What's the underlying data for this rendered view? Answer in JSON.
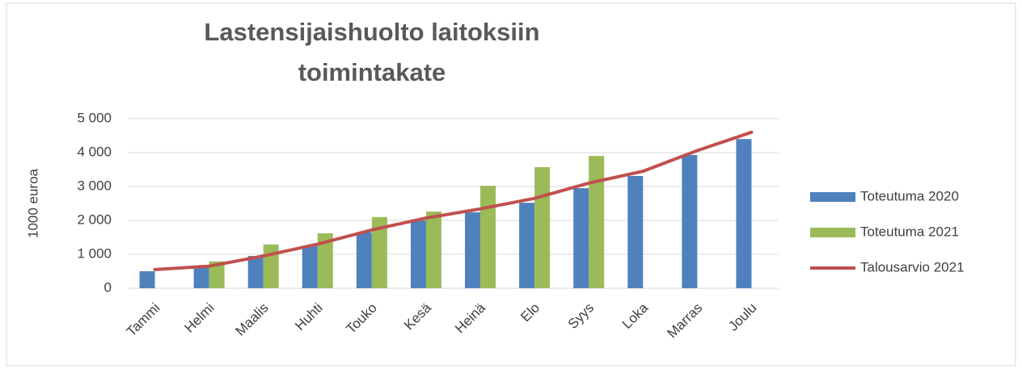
{
  "chart_data": {
    "type": "bar_line",
    "title": [
      "Lastensijaishuolto laitoksiin",
      "toimintakate"
    ],
    "ylabel": "1000 euroa",
    "categories": [
      "Tammi",
      "Helmi",
      "Maalis",
      "Huhti",
      "Touko",
      "Kesä",
      "Heinä",
      "Elo",
      "Syys",
      "Loka",
      "Marras",
      "Joulu"
    ],
    "series": [
      {
        "name": "Toteutuma 2020",
        "color": "#4f81bd",
        "kind": "bar",
        "values": [
          500,
          600,
          950,
          1250,
          1650,
          2000,
          2240,
          2520,
          2950,
          3310,
          3930,
          4400
        ]
      },
      {
        "name": "Toteutuma 2021",
        "color": "#9bbb59",
        "kind": "bar",
        "values": [
          null,
          790,
          1290,
          1620,
          2100,
          2260,
          3020,
          3570,
          3900,
          null,
          null,
          null
        ]
      },
      {
        "name": "Talousarvio 2021",
        "color": "#c0504d",
        "kind": "line",
        "values": [
          550,
          650,
          950,
          1300,
          1720,
          2070,
          2340,
          2650,
          3100,
          3450,
          4060,
          4600
        ]
      }
    ],
    "ylim": [
      0,
      5000
    ],
    "yticks": [
      {
        "value": 0,
        "label": "0"
      },
      {
        "value": 1000,
        "label": "1 000"
      },
      {
        "value": 2000,
        "label": "2 000"
      },
      {
        "value": 3000,
        "label": "3 000"
      },
      {
        "value": 4000,
        "label": "4 000"
      },
      {
        "value": 5000,
        "label": "5 000"
      }
    ],
    "grid": true,
    "legend": "right"
  }
}
